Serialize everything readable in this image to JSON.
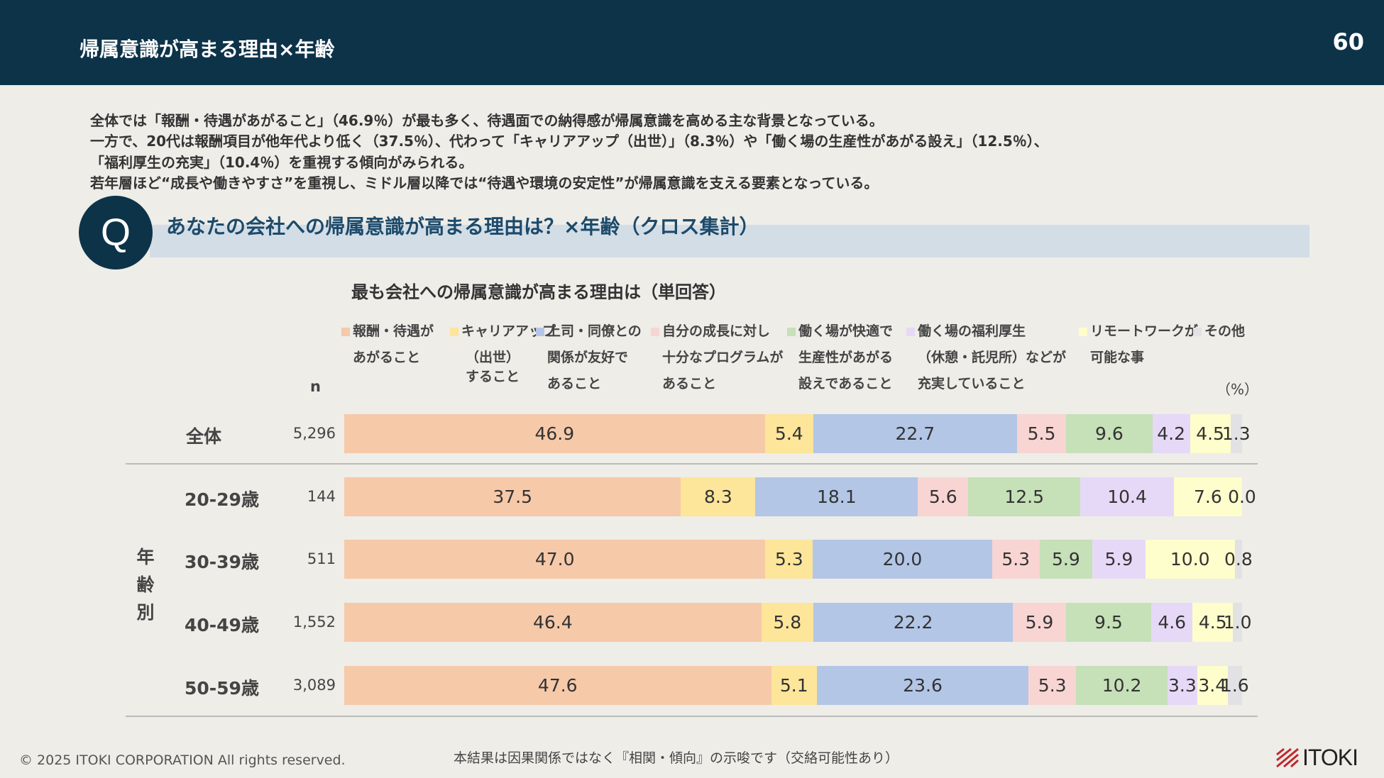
{
  "header": {
    "title": "帰属意識が高まる理由×年齢",
    "page_number": "60"
  },
  "summary": [
    "全体では「報酬・待遇があがること」（46.9％）が最も多く、待遇面での納得感が帰属意識を高める主な背景となっている。",
    "一方で、20代は報酬項目が他年代より低く（37.5％）、代わって「キャリアアップ（出世）」（8.3％）や「働く場の生産性があがる設え」（12.5％）、",
    "「福利厚生の充実」（10.4％）を重視する傾向がみられる。",
    "若年層ほど“成長や働きやすさ”を重視し、ミドル層以降では“待遇や環境の安定性”が帰属意識を支える要素となっている。"
  ],
  "question": {
    "badge": "Q",
    "text": "あなたの会社への帰属意識が高まる理由は？×年齢（クロス集計）"
  },
  "chart_data": {
    "type": "bar",
    "stacked": true,
    "orientation": "horizontal",
    "title": "最も会社への帰属意識が高まる理由は（単回答）",
    "unit_label": "（%）",
    "n_label": "n",
    "group_label": "年齢別",
    "legend_placement": "top",
    "series": [
      {
        "name_lines": [
          "報酬・待遇が",
          "あがること"
        ],
        "color": "#f6c9a9"
      },
      {
        "name_lines": [
          "キャリアアップ",
          "（出世）",
          "すること"
        ],
        "color": "#fde59a"
      },
      {
        "name_lines": [
          "上司・同僚との",
          "関係が友好で",
          "あること"
        ],
        "color": "#b3c6e6"
      },
      {
        "name_lines": [
          "自分の成長に対し",
          "十分なプログラムが",
          "あること"
        ],
        "color": "#f8d5d3"
      },
      {
        "name_lines": [
          "働く場が快適で",
          "生産性があがる",
          "設えであること"
        ],
        "color": "#c6e0b8"
      },
      {
        "name_lines": [
          "働く場の福利厚生",
          "（休憩・託児所）などが",
          "充実していること"
        ],
        "color": "#e6d9f7"
      },
      {
        "name_lines": [
          "リモートワークが",
          "可能な事"
        ],
        "color": "#fefdcc"
      },
      {
        "name_lines": [
          "その他"
        ],
        "color": "#e2e2e4"
      }
    ],
    "rows": [
      {
        "label": "全体",
        "n": "5,296",
        "values": [
          46.9,
          5.4,
          22.7,
          5.5,
          9.6,
          4.2,
          4.5,
          1.3
        ]
      },
      {
        "label": "20-29歳",
        "n": "144",
        "values": [
          37.5,
          8.3,
          18.1,
          5.6,
          12.5,
          10.4,
          7.6,
          0.0
        ]
      },
      {
        "label": "30-39歳",
        "n": "511",
        "values": [
          47.0,
          5.3,
          20.0,
          5.3,
          5.9,
          5.9,
          10.0,
          0.8
        ]
      },
      {
        "label": "40-49歳",
        "n": "1,552",
        "values": [
          46.4,
          5.8,
          22.2,
          5.9,
          9.5,
          4.6,
          4.5,
          1.0
        ]
      },
      {
        "label": "50-59歳",
        "n": "3,089",
        "values": [
          47.6,
          5.1,
          23.6,
          5.3,
          10.2,
          3.3,
          3.4,
          1.6
        ]
      }
    ]
  },
  "footer": {
    "copyright": "© 2025 ITOKI CORPORATION All rights reserved.",
    "note": "本結果は因果関係ではなく『相関・傾向』の示唆です（交絡可能性あり）",
    "logo": "ITOKI"
  }
}
